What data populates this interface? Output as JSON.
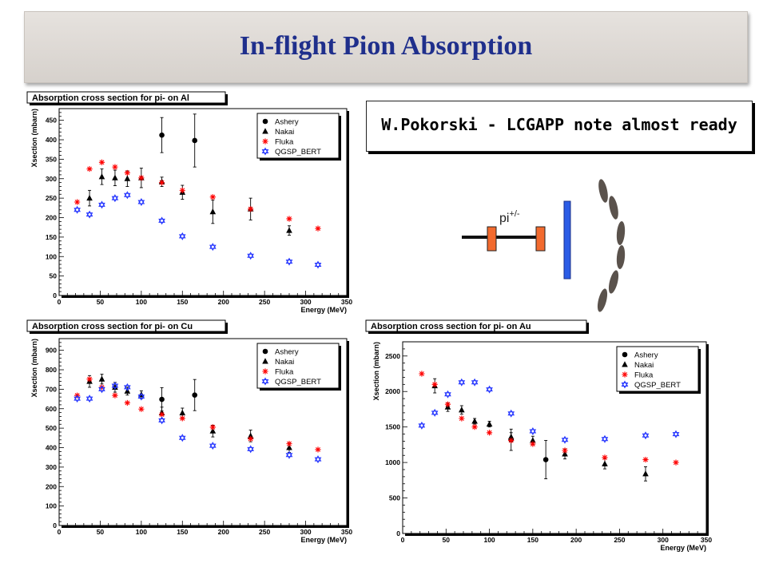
{
  "slide": {
    "title": "In-flight Pion Absorption",
    "note": "W.Pokorski - LCGAPP note almost ready"
  },
  "diagram": {
    "beam_label": "pi",
    "beam_sup": "+/-",
    "colors": {
      "beam": "#111111",
      "detector": "#f26a2e",
      "absorber": "#2b5ce6",
      "scintillator": "#5a524c"
    }
  },
  "legend_entries": [
    "Ashery",
    "Nakai",
    "Fluka",
    "QGSP_BERT"
  ],
  "series_colors": {
    "Ashery": "#000000",
    "Nakai": "#000000",
    "Fluka": "#ff0000",
    "QGSP_BERT": "#2233ff"
  },
  "chart_data": [
    {
      "type": "scatter",
      "title": "Absorption cross section for pi- on Al",
      "xlabel": "Energy (MeV)",
      "ylabel": "Xsection (mbarn)",
      "xlim": [
        0,
        350
      ],
      "ylim": [
        0,
        480
      ],
      "xticks": [
        0,
        50,
        100,
        150,
        200,
        250,
        300,
        350
      ],
      "yticks": [
        0,
        50,
        100,
        150,
        200,
        250,
        300,
        350,
        400,
        450
      ],
      "grid": false,
      "legend_position": "top-right",
      "series": [
        {
          "name": "Ashery",
          "marker": "circle",
          "points": [
            [
              125,
              412,
              45
            ],
            [
              165,
              398,
              68
            ]
          ]
        },
        {
          "name": "Nakai",
          "marker": "triangle",
          "points": [
            [
              37,
              250,
              20
            ],
            [
              52,
              305,
              20
            ],
            [
              68,
              302,
              20
            ],
            [
              83,
              300,
              20
            ],
            [
              100,
              302,
              25
            ],
            [
              125,
              292,
              12
            ],
            [
              150,
              265,
              18
            ],
            [
              187,
              215,
              30
            ],
            [
              233,
              222,
              28
            ],
            [
              280,
              167,
              12
            ]
          ]
        },
        {
          "name": "Fluka",
          "marker": "star",
          "points": [
            [
              22,
              240
            ],
            [
              37,
              325
            ],
            [
              52,
              342
            ],
            [
              68,
              330
            ],
            [
              83,
              315
            ],
            [
              100,
              302
            ],
            [
              125,
              290
            ],
            [
              150,
              270
            ],
            [
              187,
              253
            ],
            [
              233,
              222
            ],
            [
              280,
              197
            ],
            [
              315,
              172
            ]
          ]
        },
        {
          "name": "QGSP_BERT",
          "marker": "hexstar",
          "points": [
            [
              22,
              220
            ],
            [
              37,
              208
            ],
            [
              52,
              233
            ],
            [
              68,
              250
            ],
            [
              83,
              258
            ],
            [
              100,
              240
            ],
            [
              125,
              192
            ],
            [
              150,
              152
            ],
            [
              187,
              125
            ],
            [
              233,
              102
            ],
            [
              280,
              87
            ],
            [
              315,
              79
            ]
          ]
        }
      ]
    },
    {
      "type": "scatter",
      "title": "Absorption cross section for pi- on Cu",
      "xlabel": "Energy (MeV)",
      "ylabel": "Xsection (mbarn)",
      "xlim": [
        0,
        350
      ],
      "ylim": [
        0,
        960
      ],
      "xticks": [
        0,
        50,
        100,
        150,
        200,
        250,
        300,
        350
      ],
      "yticks": [
        0,
        100,
        200,
        300,
        400,
        500,
        600,
        700,
        800,
        900
      ],
      "grid": false,
      "legend_position": "top-right",
      "series": [
        {
          "name": "Ashery",
          "marker": "circle",
          "points": [
            [
              125,
              648,
              60
            ],
            [
              165,
              670,
              80
            ]
          ]
        },
        {
          "name": "Nakai",
          "marker": "triangle",
          "points": [
            [
              37,
              740,
              30
            ],
            [
              52,
              752,
              25
            ],
            [
              68,
              710,
              25
            ],
            [
              83,
              690,
              20
            ],
            [
              100,
              672,
              20
            ],
            [
              125,
              578,
              30
            ],
            [
              150,
              578,
              25
            ],
            [
              187,
              485,
              30
            ],
            [
              233,
              460,
              30
            ],
            [
              280,
              400,
              25
            ]
          ]
        },
        {
          "name": "Fluka",
          "marker": "star",
          "points": [
            [
              22,
              668
            ],
            [
              37,
              752
            ],
            [
              52,
              710
            ],
            [
              68,
              668
            ],
            [
              83,
              630
            ],
            [
              100,
              598
            ],
            [
              125,
              570
            ],
            [
              150,
              550
            ],
            [
              187,
              505
            ],
            [
              233,
              445
            ],
            [
              280,
              420
            ],
            [
              315,
              390
            ]
          ]
        },
        {
          "name": "QGSP_BERT",
          "marker": "hexstar",
          "points": [
            [
              22,
              652
            ],
            [
              37,
              652
            ],
            [
              52,
              700
            ],
            [
              68,
              718
            ],
            [
              83,
              710
            ],
            [
              100,
              662
            ],
            [
              125,
              540
            ],
            [
              150,
              450
            ],
            [
              187,
              410
            ],
            [
              233,
              392
            ],
            [
              280,
              362
            ],
            [
              315,
              340
            ]
          ]
        }
      ]
    },
    {
      "type": "scatter",
      "title": "Absorption cross section for pi- on Au",
      "xlabel": "Energy (MeV)",
      "ylabel": "Xsection (mbarn)",
      "xlim": [
        0,
        350
      ],
      "ylim": [
        0,
        2700
      ],
      "xticks": [
        0,
        50,
        100,
        150,
        200,
        250,
        300,
        350
      ],
      "yticks": [
        0,
        500,
        1000,
        1500,
        2000,
        2500
      ],
      "grid": false,
      "legend_position": "top-right",
      "series": [
        {
          "name": "Ashery",
          "marker": "circle",
          "points": [
            [
              125,
              1320,
              150
            ],
            [
              165,
              1040,
              270
            ]
          ]
        },
        {
          "name": "Nakai",
          "marker": "triangle",
          "points": [
            [
              37,
              2080,
              100
            ],
            [
              52,
              1780,
              60
            ],
            [
              68,
              1740,
              60
            ],
            [
              83,
              1580,
              40
            ],
            [
              100,
              1540,
              40
            ],
            [
              125,
              1360,
              60
            ],
            [
              150,
              1310,
              60
            ],
            [
              187,
              1120,
              70
            ],
            [
              233,
              980,
              70
            ],
            [
              280,
              840,
              100
            ]
          ]
        },
        {
          "name": "Fluka",
          "marker": "star",
          "points": [
            [
              22,
              2250
            ],
            [
              37,
              2100
            ],
            [
              52,
              1820
            ],
            [
              68,
              1620
            ],
            [
              83,
              1500
            ],
            [
              100,
              1420
            ],
            [
              125,
              1310
            ],
            [
              150,
              1260
            ],
            [
              187,
              1170
            ],
            [
              233,
              1070
            ],
            [
              280,
              1040
            ],
            [
              315,
              1000
            ]
          ]
        },
        {
          "name": "QGSP_BERT",
          "marker": "hexstar",
          "points": [
            [
              22,
              1520
            ],
            [
              37,
              1700
            ],
            [
              52,
              1960
            ],
            [
              68,
              2130
            ],
            [
              83,
              2130
            ],
            [
              100,
              2030
            ],
            [
              125,
              1690
            ],
            [
              150,
              1440
            ],
            [
              187,
              1320
            ],
            [
              233,
              1330
            ],
            [
              280,
              1380
            ],
            [
              315,
              1400
            ]
          ]
        }
      ]
    }
  ]
}
